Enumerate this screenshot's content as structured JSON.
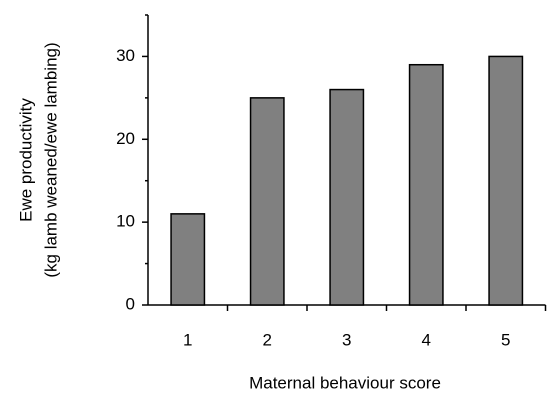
{
  "chart_data": {
    "type": "bar",
    "x_label": "Maternal behaviour score",
    "y_label": [
      "Ewe productivity",
      "(kg lamb weaned/ewe lambing)"
    ],
    "categories": [
      "1",
      "2",
      "3",
      "4",
      "5"
    ],
    "values": [
      11,
      25,
      26,
      29,
      30
    ],
    "color": "#808080",
    "ylim": [
      0,
      35
    ],
    "yticks": [
      0,
      10,
      20,
      30
    ],
    "yminor_ticks": [
      5,
      15,
      25,
      35
    ],
    "grid": false
  }
}
